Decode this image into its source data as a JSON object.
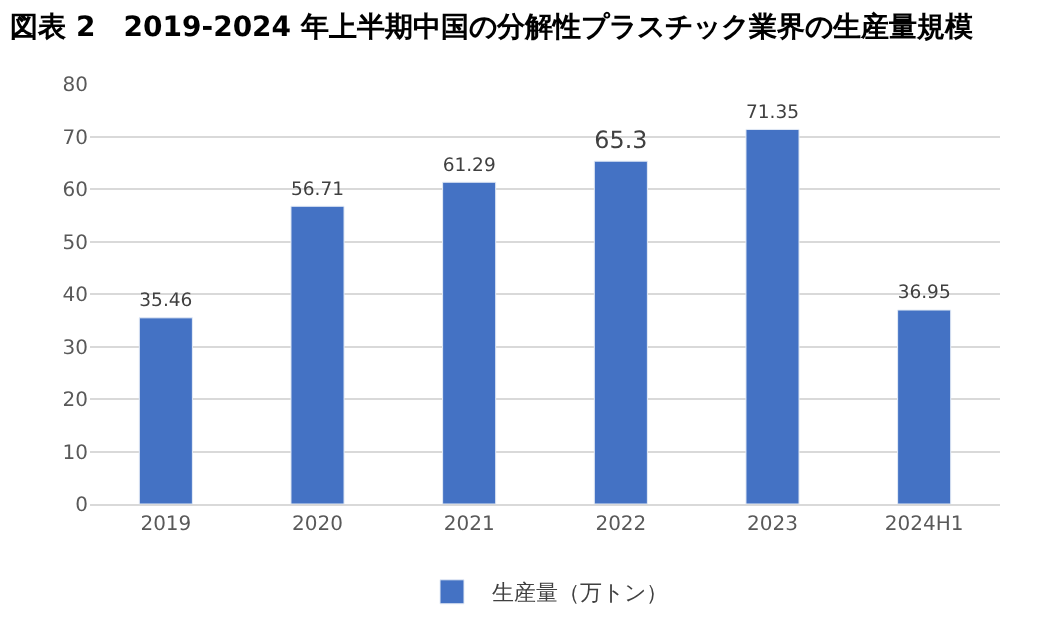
{
  "chart_data": {
    "type": "bar",
    "title": "図表 2　2019-2024 年上半期中国の分解性プラスチック業界の生産量規模",
    "categories": [
      "2019",
      "2020",
      "2021",
      "2022",
      "2023",
      "2024H1"
    ],
    "series": [
      {
        "name": "生産量（万トン）",
        "color": "#4472c4",
        "values": [
          35.46,
          56.71,
          61.29,
          65.3,
          71.35,
          36.95
        ]
      }
    ],
    "ylim": [
      0,
      80
    ],
    "yticks": [
      0,
      10,
      20,
      30,
      40,
      50,
      60,
      70,
      80
    ],
    "grid": "y",
    "legend": "bottom",
    "data_labels": true
  }
}
